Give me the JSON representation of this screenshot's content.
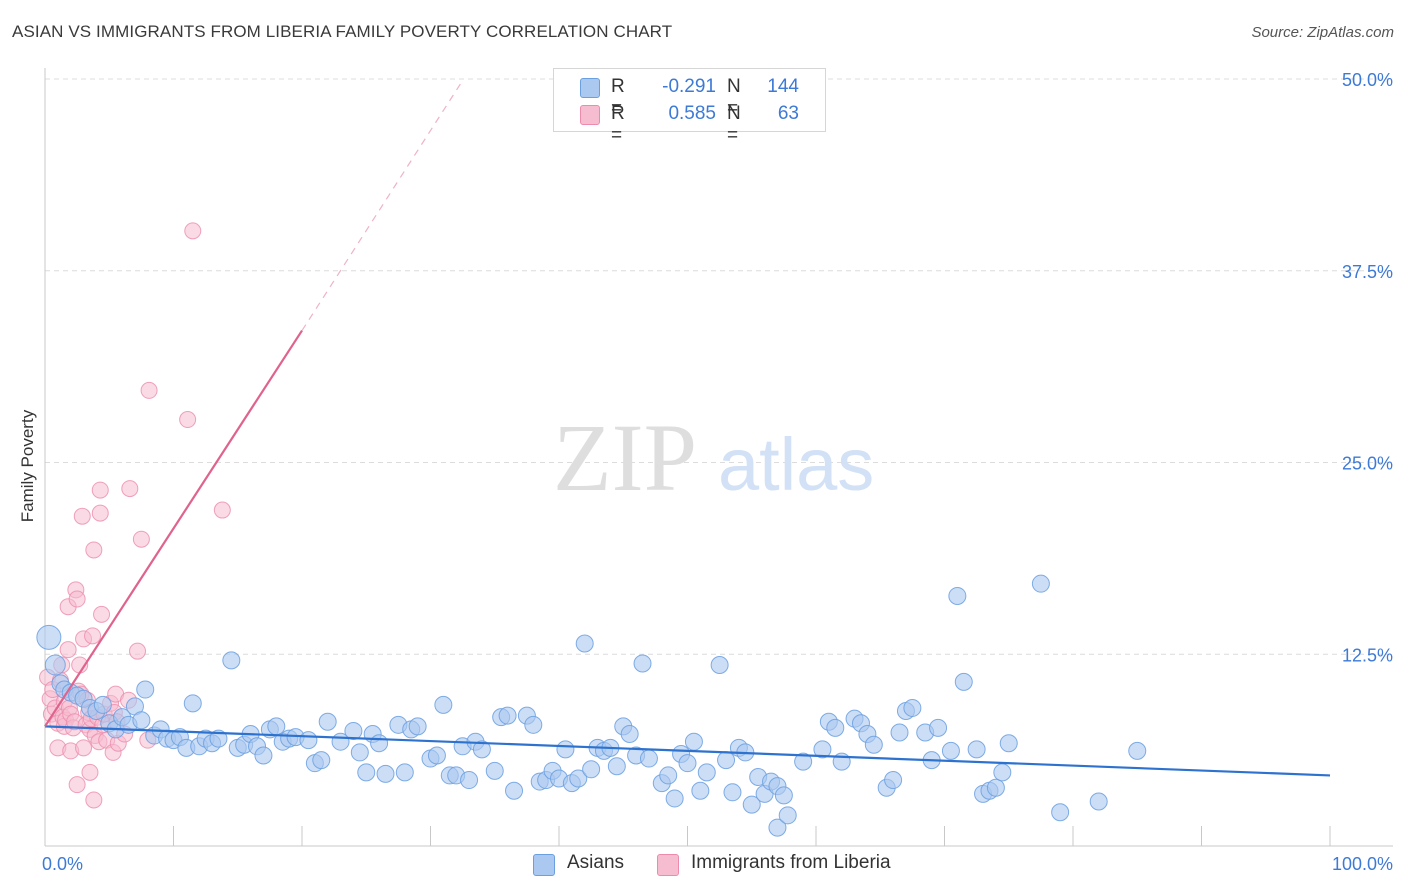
{
  "title": "ASIAN VS IMMIGRANTS FROM LIBERIA FAMILY POVERTY CORRELATION CHART",
  "source": "Source: ZipAtlas.com",
  "watermark": {
    "zip": "ZIP",
    "atlas": "atlas"
  },
  "legend": {
    "rows": [
      {
        "r_label": "R =",
        "r_value": "-0.291",
        "n_label": "N =",
        "n_value": "144",
        "color": "#aac8f0"
      },
      {
        "r_label": "R =",
        "r_value": "0.585",
        "n_label": "N =",
        "n_value": "63",
        "color": "#f6bcd0"
      }
    ]
  },
  "bottom_legend": {
    "asians": "Asians",
    "liberia": "Immigrants from Liberia"
  },
  "colors": {
    "asian_fill": "#aac8f0",
    "asian_stroke": "#6a9fe0",
    "asian_line": "#2e72cf",
    "liberia_fill": "#f6bcd0",
    "liberia_stroke": "#ec8bab",
    "liberia_line": "#e0638e",
    "axis_text": "#3d7ad6"
  },
  "chart_data": {
    "type": "scatter",
    "title": "ASIAN VS IMMIGRANTS FROM LIBERIA FAMILY POVERTY CORRELATION CHART",
    "xlabel": "",
    "ylabel": "Family Poverty",
    "xlim": [
      0,
      100
    ],
    "ylim": [
      0,
      50
    ],
    "x_tick_labels": [
      "0.0%",
      "100.0%"
    ],
    "y_ticks": [
      12.5,
      25.0,
      37.5,
      50.0
    ],
    "y_tick_labels": [
      "12.5%",
      "25.0%",
      "37.5%",
      "50.0%"
    ],
    "series": [
      {
        "name": "Asians",
        "r": -0.291,
        "n": 144,
        "trend": {
          "x0": 0,
          "y0": 7.8,
          "x1": 100,
          "y1": 4.6
        },
        "points": [
          [
            0.3,
            13.6
          ],
          [
            0.8,
            11.8
          ],
          [
            1.2,
            10.6
          ],
          [
            1.5,
            10.2
          ],
          [
            2.0,
            10.0
          ],
          [
            2.5,
            9.8
          ],
          [
            3.0,
            9.6
          ],
          [
            3.5,
            9.0
          ],
          [
            4.0,
            8.8
          ],
          [
            4.5,
            9.2
          ],
          [
            5.0,
            8.0
          ],
          [
            5.5,
            7.6
          ],
          [
            6.0,
            8.4
          ],
          [
            6.5,
            7.9
          ],
          [
            7.0,
            9.1
          ],
          [
            7.5,
            8.2
          ],
          [
            7.8,
            10.2
          ],
          [
            8.5,
            7.2
          ],
          [
            9.0,
            7.6
          ],
          [
            9.5,
            7.0
          ],
          [
            10.0,
            6.9
          ],
          [
            10.5,
            7.1
          ],
          [
            11.0,
            6.4
          ],
          [
            11.5,
            9.3
          ],
          [
            12.0,
            6.5
          ],
          [
            12.5,
            7.0
          ],
          [
            13.0,
            6.7
          ],
          [
            13.5,
            7.0
          ],
          [
            14.5,
            12.1
          ],
          [
            15.0,
            6.4
          ],
          [
            15.5,
            6.6
          ],
          [
            16.0,
            7.3
          ],
          [
            16.5,
            6.5
          ],
          [
            17.0,
            5.9
          ],
          [
            17.5,
            7.6
          ],
          [
            18.0,
            7.8
          ],
          [
            18.5,
            6.8
          ],
          [
            19.0,
            7.0
          ],
          [
            19.5,
            7.1
          ],
          [
            20.5,
            6.9
          ],
          [
            21.0,
            5.4
          ],
          [
            21.5,
            5.6
          ],
          [
            22.0,
            8.1
          ],
          [
            23.0,
            6.8
          ],
          [
            24.0,
            7.5
          ],
          [
            24.5,
            6.1
          ],
          [
            25.0,
            4.8
          ],
          [
            25.5,
            7.3
          ],
          [
            26.0,
            6.7
          ],
          [
            26.5,
            4.7
          ],
          [
            27.5,
            7.9
          ],
          [
            28.0,
            4.8
          ],
          [
            28.5,
            7.6
          ],
          [
            29.0,
            7.8
          ],
          [
            30.0,
            5.7
          ],
          [
            30.5,
            5.9
          ],
          [
            31.0,
            9.2
          ],
          [
            31.5,
            4.6
          ],
          [
            32.0,
            4.6
          ],
          [
            32.5,
            6.5
          ],
          [
            33.0,
            4.3
          ],
          [
            33.5,
            6.8
          ],
          [
            34.0,
            6.3
          ],
          [
            35.0,
            4.9
          ],
          [
            35.5,
            8.4
          ],
          [
            36.0,
            8.5
          ],
          [
            36.5,
            3.6
          ],
          [
            37.5,
            8.5
          ],
          [
            38.0,
            7.9
          ],
          [
            38.5,
            4.2
          ],
          [
            39.0,
            4.3
          ],
          [
            39.5,
            4.9
          ],
          [
            40.0,
            4.4
          ],
          [
            40.5,
            6.3
          ],
          [
            41.0,
            4.1
          ],
          [
            41.5,
            4.4
          ],
          [
            42.0,
            13.2
          ],
          [
            42.5,
            5.0
          ],
          [
            43.0,
            6.4
          ],
          [
            43.5,
            6.2
          ],
          [
            44.0,
            6.4
          ],
          [
            44.5,
            5.2
          ],
          [
            45.0,
            7.8
          ],
          [
            45.5,
            7.3
          ],
          [
            46.0,
            5.9
          ],
          [
            46.5,
            11.9
          ],
          [
            47.0,
            5.7
          ],
          [
            48.0,
            4.1
          ],
          [
            48.5,
            4.6
          ],
          [
            49.0,
            3.1
          ],
          [
            49.5,
            6.0
          ],
          [
            50.0,
            5.4
          ],
          [
            50.5,
            6.8
          ],
          [
            51.0,
            3.6
          ],
          [
            51.5,
            4.8
          ],
          [
            52.5,
            11.8
          ],
          [
            53.0,
            5.6
          ],
          [
            53.5,
            3.5
          ],
          [
            54.0,
            6.4
          ],
          [
            54.5,
            6.1
          ],
          [
            55.0,
            2.7
          ],
          [
            55.5,
            4.5
          ],
          [
            56.0,
            3.4
          ],
          [
            56.5,
            4.2
          ],
          [
            57.0,
            3.9
          ],
          [
            57.5,
            3.3
          ],
          [
            57.0,
            1.2
          ],
          [
            57.8,
            2.0
          ],
          [
            59.0,
            5.5
          ],
          [
            60.5,
            6.3
          ],
          [
            61.0,
            8.1
          ],
          [
            61.5,
            7.7
          ],
          [
            62.0,
            5.5
          ],
          [
            63.0,
            8.3
          ],
          [
            63.5,
            8.0
          ],
          [
            64.0,
            7.3
          ],
          [
            64.5,
            6.6
          ],
          [
            65.5,
            3.8
          ],
          [
            66.0,
            4.3
          ],
          [
            66.5,
            7.4
          ],
          [
            67.0,
            8.8
          ],
          [
            67.5,
            9.0
          ],
          [
            68.5,
            7.4
          ],
          [
            69.0,
            5.6
          ],
          [
            69.5,
            7.7
          ],
          [
            70.5,
            6.2
          ],
          [
            71.0,
            16.3
          ],
          [
            71.5,
            10.7
          ],
          [
            72.5,
            6.3
          ],
          [
            73.0,
            3.4
          ],
          [
            73.5,
            3.6
          ],
          [
            74.0,
            3.8
          ],
          [
            74.5,
            4.8
          ],
          [
            75.0,
            6.7
          ],
          [
            77.5,
            17.1
          ],
          [
            79.0,
            2.2
          ],
          [
            82.0,
            2.9
          ],
          [
            85.0,
            6.2
          ]
        ]
      },
      {
        "name": "Immigrants from Liberia",
        "r": 0.585,
        "n": 63,
        "trend": {
          "x0": 0,
          "y0": 7.8,
          "x1": 20,
          "y1": 33.6,
          "x_dash_end": 32.5,
          "y_dash_end": 49.9
        },
        "points": [
          [
            0.2,
            11.0
          ],
          [
            0.4,
            9.6
          ],
          [
            0.5,
            8.6
          ],
          [
            0.6,
            10.2
          ],
          [
            0.8,
            9.0
          ],
          [
            1.0,
            8.0
          ],
          [
            1.0,
            6.4
          ],
          [
            1.2,
            10.8
          ],
          [
            1.3,
            11.8
          ],
          [
            1.4,
            8.4
          ],
          [
            1.5,
            7.8
          ],
          [
            1.5,
            9.4
          ],
          [
            1.6,
            8.2
          ],
          [
            1.8,
            12.8
          ],
          [
            1.8,
            15.6
          ],
          [
            1.9,
            9.0
          ],
          [
            2.0,
            6.2
          ],
          [
            2.0,
            8.6
          ],
          [
            2.2,
            7.7
          ],
          [
            2.3,
            8.1
          ],
          [
            2.4,
            16.7
          ],
          [
            2.5,
            16.1
          ],
          [
            2.5,
            4.0
          ],
          [
            2.6,
            10.1
          ],
          [
            2.7,
            11.8
          ],
          [
            2.8,
            9.9
          ],
          [
            2.9,
            21.5
          ],
          [
            3.0,
            13.5
          ],
          [
            3.0,
            6.4
          ],
          [
            3.2,
            7.9
          ],
          [
            3.3,
            9.5
          ],
          [
            3.4,
            8.7
          ],
          [
            3.5,
            7.6
          ],
          [
            3.5,
            4.8
          ],
          [
            3.6,
            8.3
          ],
          [
            3.7,
            13.7
          ],
          [
            3.8,
            19.3
          ],
          [
            3.8,
            3.0
          ],
          [
            3.9,
            7.2
          ],
          [
            4.1,
            8.4
          ],
          [
            4.2,
            6.8
          ],
          [
            4.3,
            23.2
          ],
          [
            4.3,
            21.7
          ],
          [
            4.4,
            15.1
          ],
          [
            4.5,
            7.9
          ],
          [
            4.6,
            8.6
          ],
          [
            4.8,
            6.9
          ],
          [
            5.1,
            9.3
          ],
          [
            5.3,
            6.1
          ],
          [
            5.4,
            8.7
          ],
          [
            5.5,
            9.9
          ],
          [
            5.6,
            8.1
          ],
          [
            5.7,
            6.7
          ],
          [
            6.2,
            7.3
          ],
          [
            6.5,
            9.5
          ],
          [
            6.6,
            23.3
          ],
          [
            7.2,
            12.7
          ],
          [
            7.5,
            20.0
          ],
          [
            8.0,
            6.9
          ],
          [
            8.1,
            29.7
          ],
          [
            11.1,
            27.8
          ],
          [
            11.5,
            40.1
          ],
          [
            13.8,
            21.9
          ]
        ]
      }
    ]
  }
}
